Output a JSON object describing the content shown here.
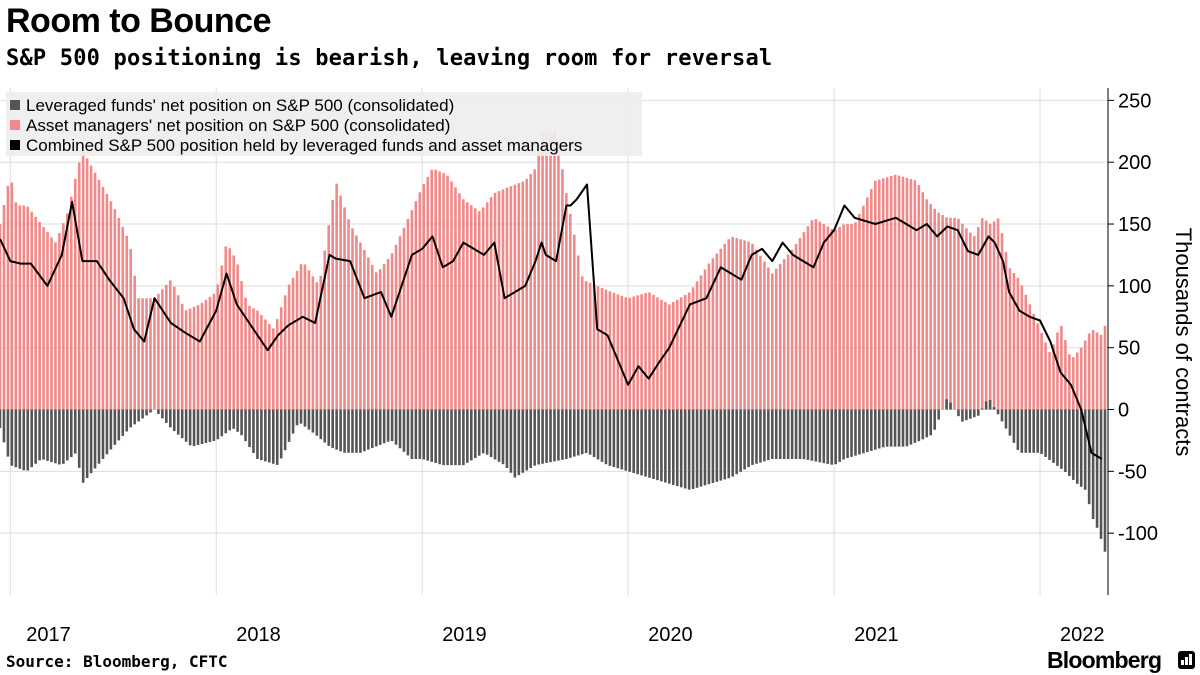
{
  "header": {
    "title": "Room to Bounce",
    "subtitle": "S&P 500 positioning is bearish, leaving room for reversal"
  },
  "footer": {
    "source": "Source: Bloomberg, CFTC",
    "brand": "Bloomberg"
  },
  "chart_data": {
    "type": "bar",
    "subtype": "stacked bars with line overlay, weekly",
    "title": "Room to Bounce",
    "subtitle": "S&P 500 positioning is bearish, leaving room for reversal",
    "xlabel": "",
    "ylabel": "Thousands of contracts",
    "ylim": [
      -150,
      260
    ],
    "yticks": [
      250,
      200,
      150,
      100,
      50,
      0,
      -50,
      -100
    ],
    "ytick_labels": [
      "250",
      "200",
      "150",
      "100",
      "50",
      "0",
      "-50",
      "-100"
    ],
    "x_start": 2016.95,
    "x_end": 2022.33,
    "year_ticks": [
      2017,
      2018,
      2019,
      2020,
      2021,
      2022
    ],
    "year_tick_labels": [
      "2017",
      "2018",
      "2019",
      "2020",
      "2021",
      "2022"
    ],
    "legend_position": "top-left",
    "colors": {
      "leveraged": "#555555",
      "asset_managers": "#f08a8a",
      "combined": "#000000",
      "legend_bg": "#eeeeee",
      "grid": "#dddddd"
    },
    "series": [
      {
        "name": "Leveraged funds' net position on S&P 500 (consolidated)",
        "type": "bar",
        "x": [
          2016.95,
          2017.0,
          2017.08,
          2017.15,
          2017.25,
          2017.32,
          2017.35,
          2017.45,
          2017.5,
          2017.58,
          2017.7,
          2017.78,
          2017.88,
          2018.0,
          2018.08,
          2018.12,
          2018.2,
          2018.3,
          2018.4,
          2018.48,
          2018.55,
          2018.62,
          2018.7,
          2018.85,
          2018.95,
          2019.0,
          2019.1,
          2019.2,
          2019.3,
          2019.4,
          2019.45,
          2019.55,
          2019.7,
          2019.8,
          2019.9,
          2020.0,
          2020.1,
          2020.2,
          2020.3,
          2020.4,
          2020.5,
          2020.6,
          2020.7,
          2020.85,
          2021.0,
          2021.05,
          2021.15,
          2021.25,
          2021.35,
          2021.42,
          2021.48,
          2021.55,
          2021.62,
          2021.7,
          2021.75,
          2021.8,
          2021.9,
          2022.0,
          2022.08,
          2022.12,
          2022.18,
          2022.22,
          2022.26,
          2022.29,
          2022.31
        ],
        "values": [
          -15,
          -45,
          -50,
          -40,
          -45,
          -35,
          -60,
          -40,
          -30,
          -15,
          0,
          -15,
          -30,
          -25,
          -15,
          -20,
          -40,
          -45,
          -10,
          -20,
          -30,
          -35,
          -35,
          -25,
          -40,
          -40,
          -45,
          -45,
          -35,
          -45,
          -55,
          -45,
          -40,
          -35,
          -45,
          -50,
          -55,
          -60,
          -65,
          -60,
          -55,
          -45,
          -40,
          -40,
          -45,
          -40,
          -35,
          -30,
          -30,
          -25,
          -20,
          10,
          -10,
          -5,
          10,
          -5,
          -35,
          -35,
          -45,
          -50,
          -60,
          -65,
          -90,
          -100,
          -115
        ]
      },
      {
        "name": "Asset managers' net position on S&P 500 (consolidated)",
        "type": "bar",
        "x": [
          2016.95,
          2017.0,
          2017.03,
          2017.08,
          2017.15,
          2017.22,
          2017.28,
          2017.32,
          2017.35,
          2017.4,
          2017.45,
          2017.5,
          2017.58,
          2017.62,
          2017.7,
          2017.78,
          2017.85,
          2017.92,
          2018.0,
          2018.05,
          2018.1,
          2018.15,
          2018.2,
          2018.28,
          2018.35,
          2018.42,
          2018.5,
          2018.58,
          2018.65,
          2018.7,
          2018.78,
          2018.85,
          2018.92,
          2019.0,
          2019.05,
          2019.12,
          2019.2,
          2019.28,
          2019.35,
          2019.42,
          2019.5,
          2019.55,
          2019.58,
          2019.65,
          2019.7,
          2019.78,
          2019.85,
          2019.92,
          2020.0,
          2020.1,
          2020.2,
          2020.3,
          2020.4,
          2020.5,
          2020.6,
          2020.7,
          2020.8,
          2020.9,
          2021.0,
          2021.05,
          2021.1,
          2021.2,
          2021.3,
          2021.4,
          2021.45,
          2021.5,
          2021.55,
          2021.6,
          2021.65,
          2021.68,
          2021.72,
          2021.76,
          2021.8,
          2021.85,
          2021.9,
          2021.95,
          2022.0,
          2022.05,
          2022.1,
          2022.15,
          2022.2,
          2022.25,
          2022.3,
          2022.33
        ],
        "values": [
          150,
          190,
          165,
          165,
          150,
          135,
          160,
          190,
          210,
          195,
          180,
          165,
          135,
          90,
          90,
          105,
          80,
          85,
          95,
          135,
          120,
          85,
          80,
          65,
          100,
          120,
          100,
          185,
          150,
          135,
          110,
          125,
          150,
          180,
          195,
          190,
          170,
          160,
          175,
          180,
          185,
          195,
          225,
          225,
          175,
          105,
          100,
          95,
          90,
          95,
          85,
          95,
          120,
          140,
          135,
          110,
          130,
          155,
          145,
          150,
          150,
          185,
          190,
          185,
          170,
          160,
          155,
          155,
          145,
          140,
          155,
          150,
          155,
          115,
          105,
          85,
          65,
          45,
          70,
          40,
          50,
          65,
          60,
          75
        ]
      },
      {
        "name": "Combined S&P 500 position held by leveraged funds and asset managers",
        "type": "line",
        "x": [
          2016.95,
          2017.0,
          2017.05,
          2017.1,
          2017.18,
          2017.25,
          2017.3,
          2017.35,
          2017.42,
          2017.48,
          2017.55,
          2017.6,
          2017.65,
          2017.7,
          2017.78,
          2017.85,
          2017.92,
          2018.0,
          2018.05,
          2018.1,
          2018.18,
          2018.25,
          2018.3,
          2018.35,
          2018.42,
          2018.48,
          2018.55,
          2018.58,
          2018.65,
          2018.72,
          2018.8,
          2018.85,
          2018.9,
          2018.95,
          2019.0,
          2019.05,
          2019.1,
          2019.15,
          2019.2,
          2019.3,
          2019.35,
          2019.4,
          2019.5,
          2019.55,
          2019.58,
          2019.6,
          2019.65,
          2019.7,
          2019.72,
          2019.75,
          2019.8,
          2019.85,
          2019.9,
          2020.0,
          2020.05,
          2020.1,
          2020.15,
          2020.2,
          2020.3,
          2020.38,
          2020.45,
          2020.5,
          2020.55,
          2020.6,
          2020.65,
          2020.7,
          2020.75,
          2020.8,
          2020.85,
          2020.9,
          2020.95,
          2021.0,
          2021.05,
          2021.1,
          2021.2,
          2021.3,
          2021.35,
          2021.4,
          2021.45,
          2021.5,
          2021.55,
          2021.6,
          2021.65,
          2021.7,
          2021.75,
          2021.78,
          2021.82,
          2021.85,
          2021.9,
          2021.95,
          2022.0,
          2022.05,
          2022.1,
          2022.15,
          2022.2,
          2022.25,
          2022.3
        ],
        "values": [
          138,
          120,
          118,
          118,
          100,
          125,
          168,
          120,
          120,
          105,
          90,
          65,
          55,
          90,
          70,
          62,
          55,
          80,
          110,
          85,
          65,
          48,
          60,
          68,
          75,
          70,
          125,
          122,
          120,
          90,
          95,
          75,
          100,
          125,
          130,
          140,
          115,
          120,
          135,
          125,
          135,
          90,
          100,
          120,
          135,
          125,
          120,
          165,
          165,
          170,
          182,
          65,
          60,
          20,
          35,
          25,
          38,
          50,
          85,
          90,
          115,
          110,
          105,
          125,
          130,
          120,
          135,
          125,
          120,
          115,
          135,
          145,
          165,
          155,
          150,
          155,
          150,
          145,
          150,
          140,
          148,
          145,
          128,
          125,
          140,
          135,
          120,
          95,
          80,
          75,
          72,
          55,
          30,
          20,
          0,
          -35,
          -40
        ]
      }
    ]
  }
}
